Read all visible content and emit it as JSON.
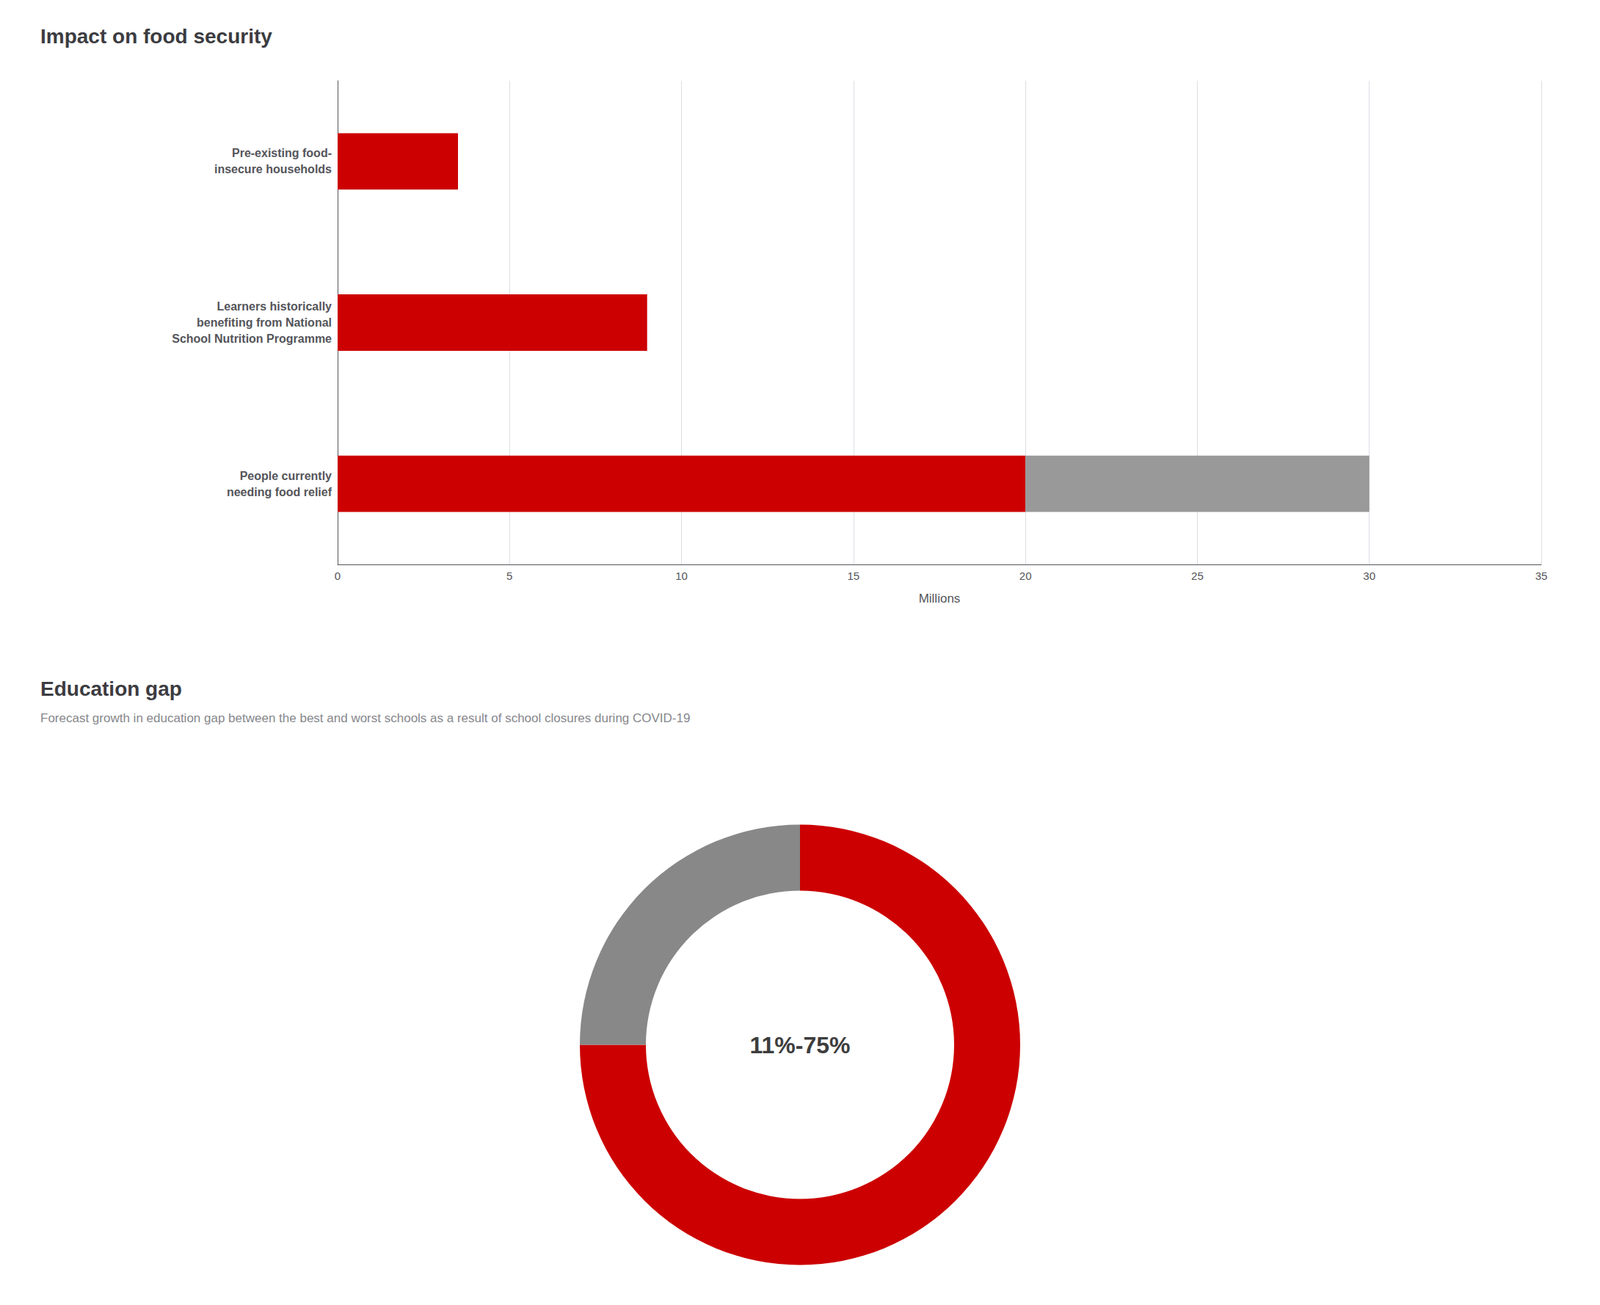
{
  "chart_data": [
    {
      "type": "bar",
      "title": "Impact on food security",
      "orientation": "horizontal",
      "stacked": true,
      "categories": [
        "Pre-existing food-\ninsecure households",
        "Learners historically\nbenefiting from National\nSchool Nutrition Programme",
        "People currently\nneeding food relief"
      ],
      "series": [
        {
          "color": "#cc0000",
          "values": [
            3.5,
            9.0,
            20.0
          ]
        },
        {
          "color": "#999999",
          "values": [
            0,
            0,
            10.0
          ]
        }
      ],
      "xlabel": "Millions",
      "xlim": [
        0,
        35
      ],
      "xticks": [
        0,
        5,
        10,
        15,
        20,
        25,
        30,
        35
      ],
      "grid": true
    },
    {
      "type": "pie",
      "title": "Education gap",
      "subtitle": "Forecast growth in education gap between the best and worst schools as a result of school closures during COVID-19",
      "values": [
        270,
        90
      ],
      "colors": [
        "#cc0000",
        "#888888"
      ],
      "annotations": [
        "11%-75%"
      ]
    }
  ]
}
